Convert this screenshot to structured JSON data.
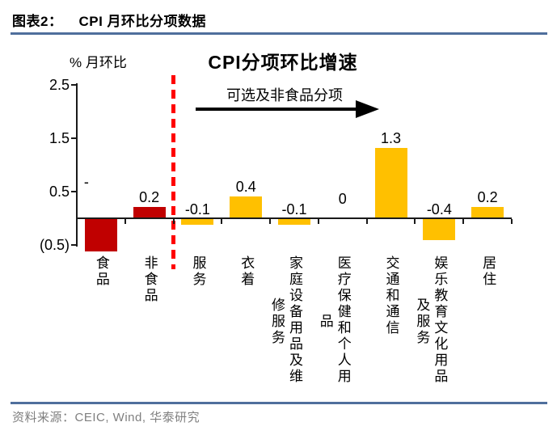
{
  "header": {
    "figure_label": "图表2：",
    "figure_title": "CPI 月环比分项数据"
  },
  "chart_data": {
    "type": "bar",
    "title": "CPI分项环比增速",
    "ylabel": "% 月环比",
    "annotation": "可选及非食品分项",
    "categories": [
      "食品",
      "非食品",
      "服务",
      "衣着",
      "家庭设备用品及维修服务",
      "医疗保健和个人用品",
      "交通和通信",
      "娱乐教育文化用品及服务",
      "居住"
    ],
    "values": [
      -0.6,
      0.2,
      -0.1,
      0.4,
      -0.1,
      0,
      1.3,
      -0.4,
      0.2
    ],
    "bar_labels": [
      "-",
      "0.2",
      "-0.1",
      "0.4",
      "-0.1",
      "0",
      "1.3",
      "-0.4",
      "0.2"
    ],
    "bar_colors": [
      "#C00000",
      "#C00000",
      "#FFC000",
      "#FFC000",
      "#FFC000",
      "#FFC000",
      "#FFC000",
      "#FFC000",
      "#FFC000"
    ],
    "ylim": [
      -0.5,
      2.5
    ],
    "y_tick_values": [
      2.5,
      1.5,
      0.5,
      -0.5
    ],
    "y_tick_labels": [
      "2.5",
      "1.5",
      "0.5",
      "(0.5)"
    ],
    "grid": false,
    "legend": false,
    "separator": {
      "after_category": "非食品",
      "style": "dashed",
      "color": "#FF0000"
    }
  },
  "footer": {
    "source": "资料来源：CEIC, Wind,  华泰研究"
  }
}
